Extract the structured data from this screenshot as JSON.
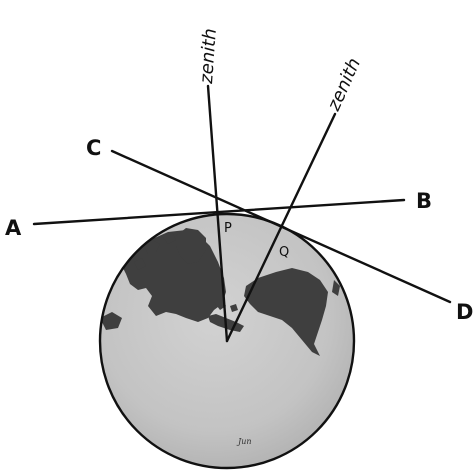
{
  "labels": {
    "point_a": "A",
    "point_b": "B",
    "point_c": "C",
    "point_d": "D",
    "point_p": "P",
    "point_q": "Q",
    "zenith_left": "zenith",
    "zenith_right": "zenith",
    "globe_stamp": "Jun"
  },
  "colors": {
    "ocean": "#c6c6c6",
    "ocean_shade": "#b4b4b4",
    "land": "#3f3f3f",
    "outline": "#111111",
    "ink": "#111111",
    "background": "#ffffff"
  }
}
